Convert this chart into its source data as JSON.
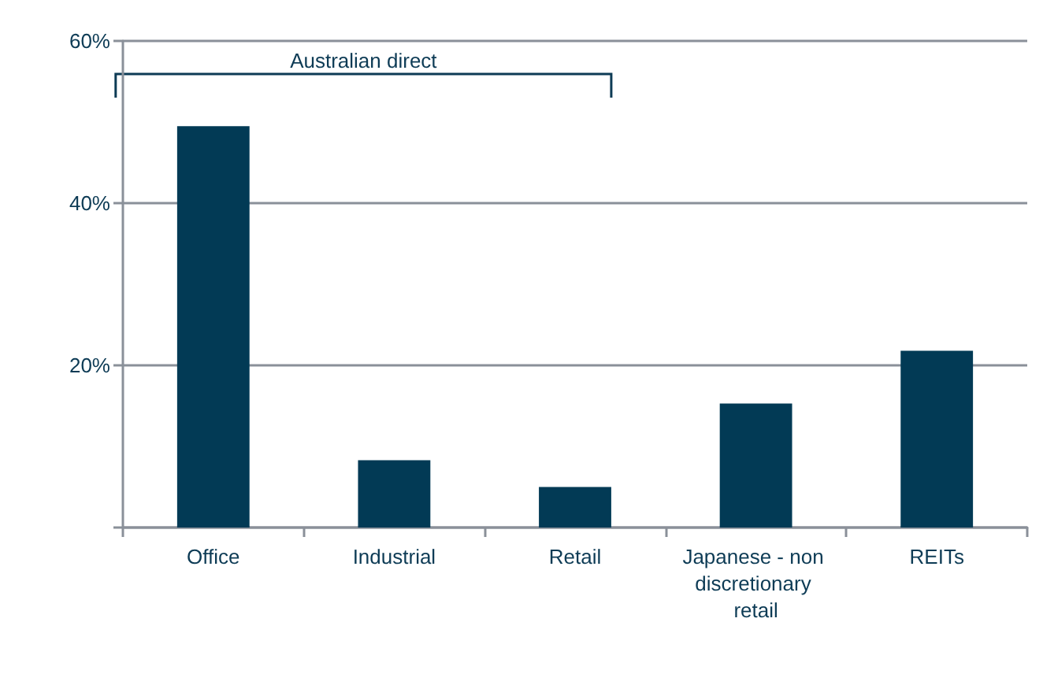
{
  "chart_data": {
    "type": "bar",
    "categories": [
      "Office",
      "Industrial",
      "Retail",
      "Japanese - non discretionary retail",
      "REITs"
    ],
    "values": [
      49.5,
      8.3,
      5,
      15.3,
      21.8
    ],
    "color": "#023a55",
    "ylim": [
      0,
      60
    ],
    "yticks": [
      {
        "value": 0,
        "label": null
      },
      {
        "value": 20,
        "label": "20%"
      },
      {
        "value": 40,
        "label": "40%"
      },
      {
        "value": 60,
        "label": "60%"
      }
    ],
    "grid": "y",
    "annotations": [
      "Australian direct"
    ]
  }
}
